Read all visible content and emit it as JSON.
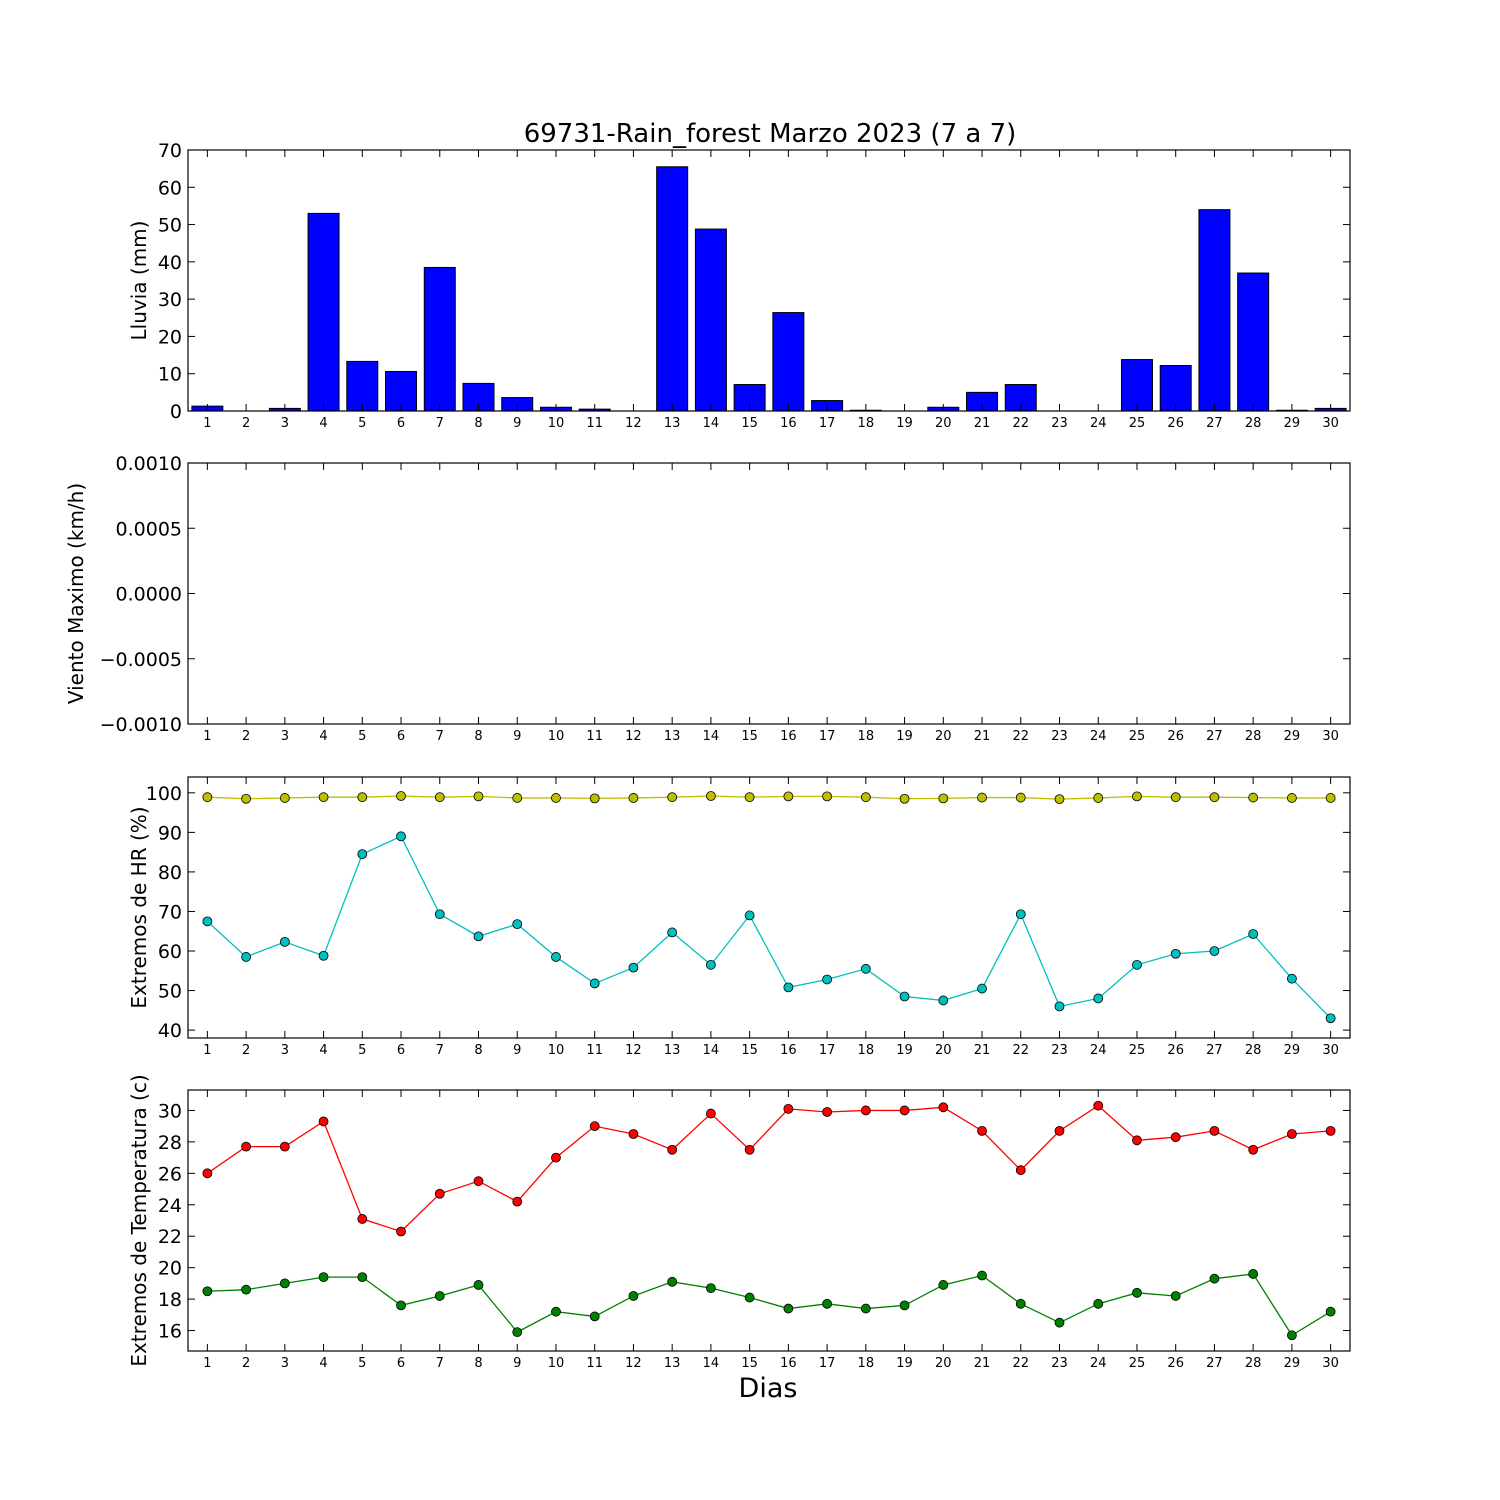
{
  "chart_data": {
    "title": "69731-Rain_forest Marzo 2023  (7 a 7)",
    "xlabel": "Dias",
    "days": [
      1,
      2,
      3,
      4,
      5,
      6,
      7,
      8,
      9,
      10,
      11,
      12,
      13,
      14,
      15,
      16,
      17,
      18,
      19,
      20,
      21,
      22,
      23,
      24,
      25,
      26,
      27,
      28,
      29,
      30
    ],
    "panels": [
      {
        "type": "bar",
        "ylabel": "Lluvia (mm)",
        "ylim": [
          0,
          70
        ],
        "yticks": [
          0,
          10,
          20,
          30,
          40,
          50,
          60,
          70
        ],
        "ytick_labels": [
          "0",
          "10",
          "20",
          "30",
          "40",
          "50",
          "60",
          "70"
        ],
        "series": [
          {
            "color": "#0000ff",
            "values": [
              1.3,
              0,
              0.7,
              53.0,
              13.3,
              10.6,
              38.5,
              7.4,
              3.6,
              1.0,
              0.5,
              0,
              65.5,
              48.8,
              7.1,
              26.4,
              2.8,
              0.2,
              0,
              1.0,
              5.0,
              7.1,
              0,
              0,
              13.8,
              12.2,
              54.0,
              37.0,
              0.2,
              0.7
            ]
          }
        ]
      },
      {
        "type": "line",
        "ylabel": "Viento Maximo (km/h)",
        "ylim": [
          -0.001,
          0.001
        ],
        "yticks": [
          -0.001,
          -0.0005,
          0,
          0.0005,
          0.001
        ],
        "ytick_labels": [
          "−0.0010",
          "−0.0005",
          "0.0000",
          "0.0005",
          "0.0010"
        ],
        "series": []
      },
      {
        "type": "line",
        "ylabel": "Extremos de HR (%)",
        "ylim": [
          38,
          104
        ],
        "yticks": [
          40,
          50,
          60,
          70,
          80,
          90,
          100
        ],
        "ytick_labels": [
          "40",
          "50",
          "60",
          "70",
          "80",
          "90",
          "100"
        ],
        "series": [
          {
            "color": "#bfbf00",
            "values": [
              98.9,
              98.5,
              98.7,
              98.9,
              98.9,
              99.2,
              98.9,
              99.1,
              98.7,
              98.7,
              98.6,
              98.7,
              98.9,
              99.2,
              98.9,
              99.1,
              99.1,
              98.9,
              98.5,
              98.6,
              98.8,
              98.8,
              98.4,
              98.7,
              99.1,
              98.9,
              98.9,
              98.8,
              98.7,
              98.7
            ]
          },
          {
            "color": "#00bfbf",
            "values": [
              67.5,
              58.5,
              62.3,
              58.8,
              84.5,
              89.0,
              69.3,
              63.7,
              66.8,
              58.5,
              51.8,
              55.8,
              64.7,
              56.5,
              69.0,
              50.8,
              52.8,
              55.5,
              48.5,
              47.5,
              50.5,
              69.3,
              46.0,
              48.0,
              56.5,
              59.3,
              60.0,
              64.3,
              53.0,
              43.0
            ]
          }
        ]
      },
      {
        "type": "line",
        "ylabel": "Extremos de Temperatura (c)",
        "ylim": [
          14.7,
          31.3
        ],
        "yticks": [
          16,
          18,
          20,
          22,
          24,
          26,
          28,
          30
        ],
        "ytick_labels": [
          "16",
          "18",
          "20",
          "22",
          "24",
          "26",
          "28",
          "30"
        ],
        "series": [
          {
            "color": "#ff0000",
            "values": [
              26.0,
              27.7,
              27.7,
              29.3,
              23.1,
              22.3,
              24.7,
              25.5,
              24.2,
              27.0,
              29.0,
              28.5,
              27.5,
              29.8,
              27.5,
              30.1,
              29.9,
              30.0,
              30.0,
              30.2,
              28.7,
              26.2,
              28.7,
              30.3,
              28.1,
              28.3,
              28.7,
              27.5,
              28.5,
              28.7
            ]
          },
          {
            "color": "#008000",
            "values": [
              18.5,
              18.6,
              19.0,
              19.4,
              19.4,
              17.6,
              18.2,
              18.9,
              15.9,
              17.2,
              16.9,
              18.2,
              19.1,
              18.7,
              18.1,
              17.4,
              17.7,
              17.4,
              17.6,
              18.9,
              19.5,
              17.7,
              16.5,
              17.7,
              18.4,
              18.2,
              19.3,
              19.6,
              15.7,
              17.2
            ]
          }
        ]
      }
    ]
  }
}
